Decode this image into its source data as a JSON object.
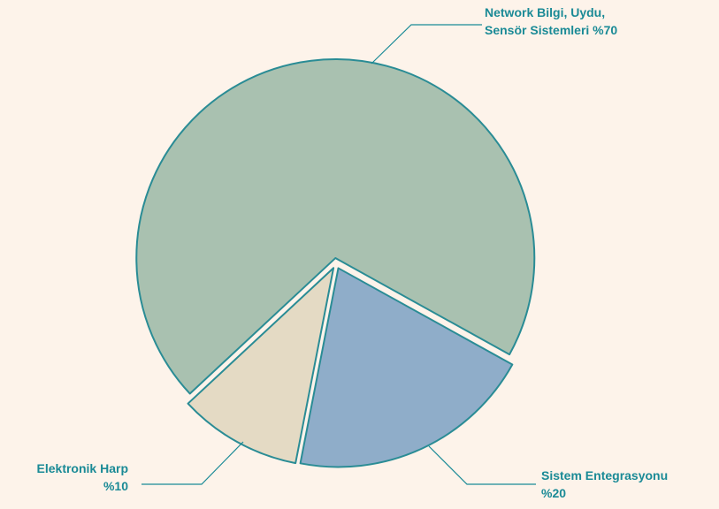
{
  "chart_data": {
    "type": "pie",
    "categories": [
      "Network Bilgi, Uydu, Sensör Sistemleri",
      "Sistem Entegrasyonu",
      "Elektronik Harp"
    ],
    "values": [
      70,
      20,
      10
    ],
    "value_labels": [
      "%70",
      "%20",
      "%10"
    ],
    "colors": [
      "#a9c1b0",
      "#8fadc9",
      "#e4dac4"
    ]
  }
}
